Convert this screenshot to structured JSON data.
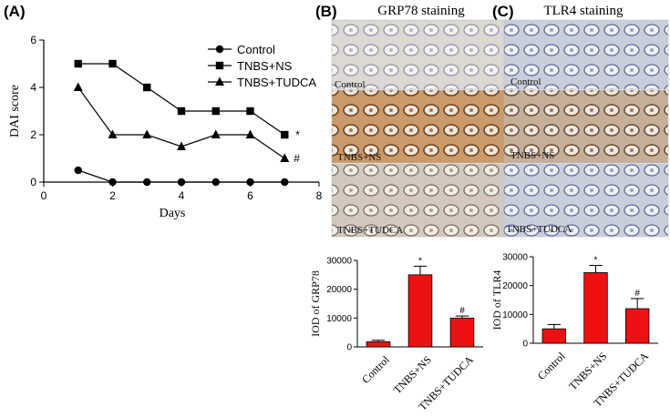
{
  "panels": {
    "A": "(A)",
    "B": "(B)",
    "C": "(C)"
  },
  "titles": {
    "grp78": "GRP78 staining",
    "tlr4": "TLR4 staining"
  },
  "photo_labels": {
    "grp78": [
      "Control",
      "TNBS+NS",
      "TNBS+TUDCA"
    ],
    "tlr4": [
      "Control",
      "TNBS+NS",
      "TNBS+TUDCA"
    ]
  },
  "colors": {
    "bar_fill": "#ee1111",
    "axis": "#000000",
    "tissue_light": "#d8d4ce",
    "tissue_brown": "#8a5a2e",
    "tissue_blue": "#8a96b8"
  },
  "chart_data": [
    {
      "id": "dai",
      "type": "line",
      "xlabel": "Days",
      "ylabel": "DAI score",
      "xlim": [
        0,
        8
      ],
      "ylim": [
        0,
        6
      ],
      "xticks": [
        0,
        2,
        4,
        6,
        8
      ],
      "yticks": [
        0,
        2,
        4,
        6
      ],
      "legend_position": "top-right",
      "series": [
        {
          "name": "Control",
          "marker": "circle",
          "x": [
            1,
            2,
            3,
            4,
            5,
            6,
            7
          ],
          "y": [
            0.5,
            0,
            0,
            0,
            0,
            0,
            0
          ]
        },
        {
          "name": "TNBS+NS",
          "marker": "square",
          "x": [
            1,
            2,
            3,
            4,
            5,
            6,
            7
          ],
          "y": [
            5,
            5,
            4,
            3,
            3,
            3,
            2
          ],
          "end_label": "*"
        },
        {
          "name": "TNBS+TUDCA",
          "marker": "triangle",
          "x": [
            1,
            2,
            3,
            4,
            5,
            6,
            7
          ],
          "y": [
            4,
            2,
            2,
            1.5,
            2,
            2,
            1
          ],
          "end_label": "#"
        }
      ]
    },
    {
      "id": "grp78",
      "type": "bar",
      "ylabel": "IOD of GRP78",
      "categories": [
        "Control",
        "TNBS+NS",
        "TNBS+TUDCA"
      ],
      "values": [
        1800,
        25000,
        10000
      ],
      "errors": [
        500,
        3000,
        700
      ],
      "annotations": [
        "",
        "*",
        "#"
      ],
      "ylim": [
        0,
        30000
      ],
      "yticks": [
        0,
        10000,
        20000,
        30000
      ]
    },
    {
      "id": "tlr4",
      "type": "bar",
      "ylabel": "IOD of TLR4",
      "categories": [
        "Control",
        "TNBS+NS",
        "TNBS+TUDCA"
      ],
      "values": [
        5000,
        24500,
        12000
      ],
      "errors": [
        1500,
        2500,
        3500
      ],
      "annotations": [
        "",
        "*",
        "#"
      ],
      "ylim": [
        0,
        30000
      ],
      "yticks": [
        0,
        10000,
        20000,
        30000
      ]
    }
  ]
}
